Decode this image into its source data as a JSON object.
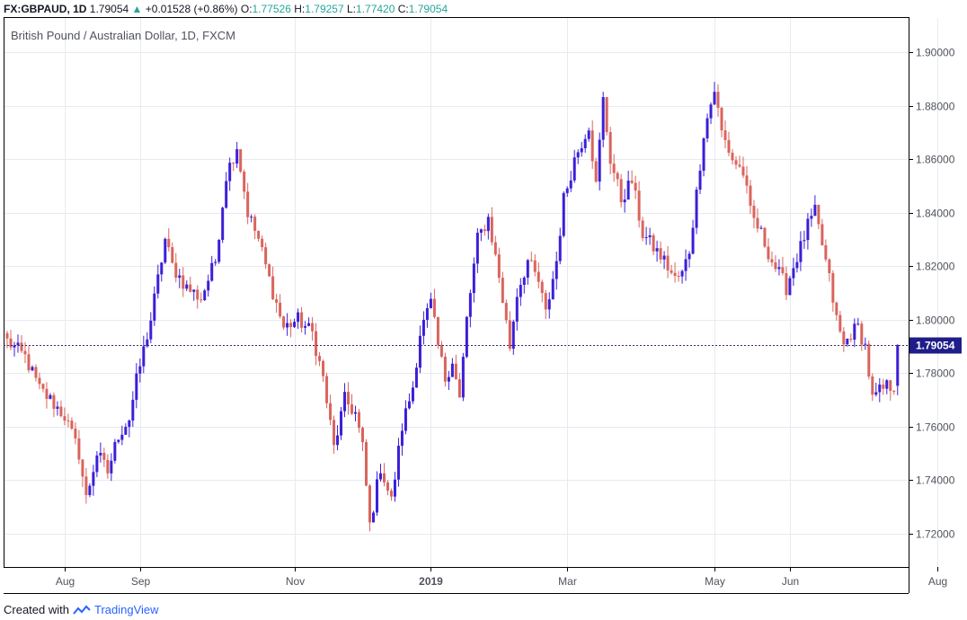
{
  "header": {
    "symbol": "FX:GBPAUD, 1D",
    "last": "1.79054",
    "change": "+0.01528 (+0.86%)",
    "o_label": "O:",
    "o_value": "1.77526",
    "h_label": "H:",
    "h_value": "1.79257",
    "l_label": "L:",
    "l_value": "1.77420",
    "c_label": "C:",
    "c_value": "1.79054"
  },
  "colors": {
    "up": "#3a1fd8",
    "down": "#d9645d",
    "price_line": "#4a1f6b",
    "price_label_bg": "#1f1d8a",
    "grid": "#e6ebf0",
    "axis_text": "#50535e",
    "header_up": "#26a69a"
  },
  "footer": {
    "created_with": "Created with",
    "brand": "TradingView"
  },
  "chart_data": {
    "type": "candlestick",
    "title": "British Pound / Australian Dollar, 1D, FXCM",
    "y_ticks": [
      "1.90000",
      "1.88000",
      "1.86000",
      "1.84000",
      "1.82000",
      "1.80000",
      "1.78000",
      "1.76000",
      "1.74000",
      "1.72000"
    ],
    "ylim": [
      1.7075,
      1.9128
    ],
    "x_labels": [
      {
        "label": "Aug",
        "index": 16
      },
      {
        "label": "Sep",
        "index": 37
      },
      {
        "label": "Nov",
        "index": 80
      },
      {
        "label": "2019",
        "index": 118
      },
      {
        "label": "Mar",
        "index": 156
      },
      {
        "label": "May",
        "index": 197
      },
      {
        "label": "Jun",
        "index": 218
      },
      {
        "label": "Aug",
        "index": 259
      }
    ],
    "last_price": 1.79054,
    "last_price_label": "1.79054",
    "grid": true,
    "anchors": [
      [
        0,
        1.792
      ],
      [
        5,
        1.786
      ],
      [
        9,
        1.774
      ],
      [
        12,
        1.77
      ],
      [
        16,
        1.764
      ],
      [
        20,
        1.75
      ],
      [
        22,
        1.733
      ],
      [
        25,
        1.75
      ],
      [
        28,
        1.743
      ],
      [
        31,
        1.757
      ],
      [
        34,
        1.763
      ],
      [
        36,
        1.777
      ],
      [
        40,
        1.8
      ],
      [
        44,
        1.83
      ],
      [
        46,
        1.82
      ],
      [
        50,
        1.812
      ],
      [
        54,
        1.808
      ],
      [
        58,
        1.822
      ],
      [
        61,
        1.854
      ],
      [
        64,
        1.865
      ],
      [
        67,
        1.84
      ],
      [
        70,
        1.83
      ],
      [
        73,
        1.815
      ],
      [
        77,
        1.797
      ],
      [
        81,
        1.8
      ],
      [
        85,
        1.795
      ],
      [
        88,
        1.778
      ],
      [
        91,
        1.752
      ],
      [
        94,
        1.77
      ],
      [
        97,
        1.765
      ],
      [
        99,
        1.752
      ],
      [
        101,
        1.723
      ],
      [
        104,
        1.745
      ],
      [
        107,
        1.732
      ],
      [
        110,
        1.76
      ],
      [
        113,
        1.775
      ],
      [
        115,
        1.795
      ],
      [
        118,
        1.806
      ],
      [
        120,
        1.79
      ],
      [
        122,
        1.778
      ],
      [
        124,
        1.785
      ],
      [
        126,
        1.77
      ],
      [
        128,
        1.8
      ],
      [
        131,
        1.83
      ],
      [
        134,
        1.838
      ],
      [
        137,
        1.816
      ],
      [
        140,
        1.79
      ],
      [
        142,
        1.81
      ],
      [
        145,
        1.822
      ],
      [
        148,
        1.814
      ],
      [
        150,
        1.802
      ],
      [
        153,
        1.822
      ],
      [
        155,
        1.845
      ],
      [
        158,
        1.86
      ],
      [
        162,
        1.873
      ],
      [
        164,
        1.85
      ],
      [
        166,
        1.882
      ],
      [
        168,
        1.86
      ],
      [
        171,
        1.845
      ],
      [
        174,
        1.852
      ],
      [
        177,
        1.832
      ],
      [
        180,
        1.827
      ],
      [
        183,
        1.822
      ],
      [
        186,
        1.815
      ],
      [
        188,
        1.817
      ],
      [
        190,
        1.826
      ],
      [
        192,
        1.847
      ],
      [
        194,
        1.87
      ],
      [
        197,
        1.886
      ],
      [
        199,
        1.87
      ],
      [
        202,
        1.86
      ],
      [
        205,
        1.855
      ],
      [
        207,
        1.84
      ],
      [
        210,
        1.832
      ],
      [
        213,
        1.822
      ],
      [
        215,
        1.817
      ],
      [
        217,
        1.812
      ],
      [
        219,
        1.82
      ],
      [
        221,
        1.827
      ],
      [
        223,
        1.835
      ],
      [
        225,
        1.84
      ],
      [
        227,
        1.828
      ],
      [
        229,
        1.815
      ],
      [
        231,
        1.8
      ],
      [
        233,
        1.79
      ],
      [
        235,
        1.795
      ],
      [
        237,
        1.797
      ],
      [
        239,
        1.79
      ],
      [
        241,
        1.77
      ],
      [
        243,
        1.773
      ],
      [
        245,
        1.775
      ],
      [
        247,
        1.7753
      ],
      [
        248,
        1.7905
      ]
    ]
  }
}
